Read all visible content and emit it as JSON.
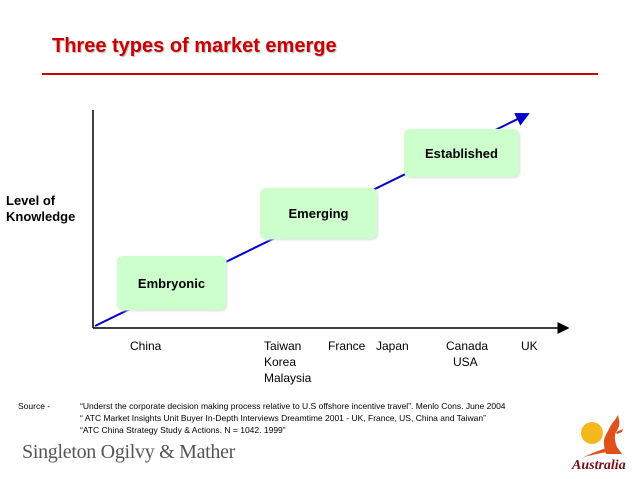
{
  "slide": {
    "title": "Three types of market emerge",
    "y_axis_label_line1": "Level of",
    "y_axis_label_line2": "Knowledge"
  },
  "stages": [
    {
      "label": "Embryonic"
    },
    {
      "label": "Emerging"
    },
    {
      "label": "Established"
    }
  ],
  "x_labels": {
    "china": "China",
    "taiwan": "Taiwan",
    "korea": "Korea",
    "malaysia": "Malaysia",
    "france": "France",
    "japan": "Japan",
    "canada": "Canada",
    "usa": "USA",
    "uk": "UK"
  },
  "source": {
    "label": "Source   -",
    "lines": [
      "“Underst the corporate decision making process relative to U.S offshore incentive travel”. Menlo Cons. June 2004",
      "“ ATC Market Insights Unit Buyer In-Depth Interviews Dreamtime 2001 - UK, France, US, China and Taiwan”",
      "“ATC China Strategy Study & Actions. N = 1042. 1999”"
    ]
  },
  "logos": {
    "agency": "Singleton Ogilvy & Mather",
    "brand": "Australia"
  },
  "colors": {
    "title": "#cc0000",
    "rule": "#cc0000",
    "box_fill": "#ccffcc",
    "arrow": "#0000cc"
  }
}
